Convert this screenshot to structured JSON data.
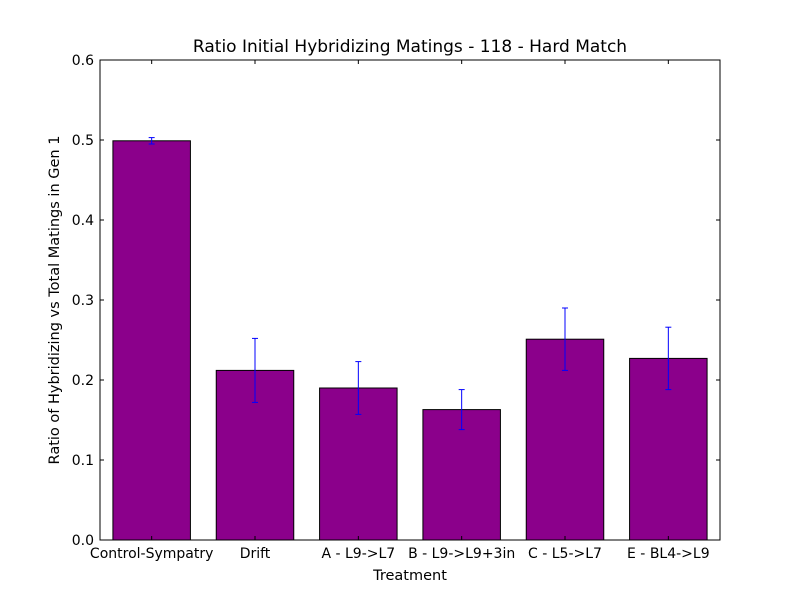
{
  "chart_data": {
    "type": "bar",
    "title": "Ratio Initial Hybridizing Matings - 118 - Hard Match",
    "xlabel": "Treatment",
    "ylabel": "Ratio of Hybridizing vs Total Matings in Gen 1",
    "categories": [
      "Control-Sympatry",
      "Drift",
      "A - L9->L7",
      "B - L9->L9+3in",
      "C - L5->L7",
      "E - BL4->L9"
    ],
    "values": [
      0.499,
      0.212,
      0.19,
      0.163,
      0.251,
      0.227
    ],
    "errors": [
      0.004,
      0.04,
      0.033,
      0.025,
      0.039,
      0.039
    ],
    "ylim": [
      0,
      0.6
    ],
    "yticks": [
      "0.0",
      "0.1",
      "0.2",
      "0.3",
      "0.4",
      "0.5",
      "0.6"
    ],
    "grid": false,
    "colors": {
      "bar": "#8b008b",
      "error": "#0000ff"
    }
  }
}
